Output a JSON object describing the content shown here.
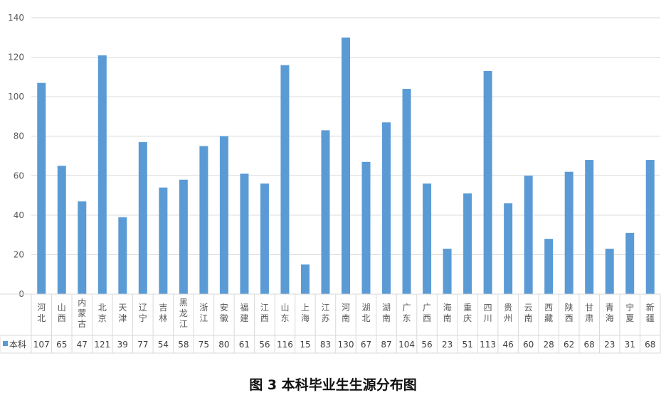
{
  "caption": "图 3 本科毕业生生源分布图",
  "chart_data": {
    "type": "bar",
    "title": "",
    "xlabel": "",
    "ylabel": "",
    "ylim": [
      0,
      140
    ],
    "yticks": [
      0,
      20,
      40,
      60,
      80,
      100,
      120,
      140
    ],
    "grid": true,
    "legend": "data-table-left",
    "bar_color": "#5B9BD5",
    "categories": [
      "河北",
      "山西",
      "内蒙古",
      "北京",
      "天津",
      "辽宁",
      "吉林",
      "黑龙江",
      "浙江",
      "安徽",
      "福建",
      "江西",
      "山东",
      "上海",
      "江苏",
      "河南",
      "湖北",
      "湖南",
      "广东",
      "广西",
      "海南",
      "重庆",
      "四川",
      "贵州",
      "云南",
      "西藏",
      "陕西",
      "甘肃",
      "青海",
      "宁夏",
      "新疆"
    ],
    "series": [
      {
        "name": "本科",
        "values": [
          107,
          65,
          47,
          121,
          39,
          77,
          54,
          58,
          75,
          80,
          61,
          56,
          116,
          15,
          83,
          130,
          67,
          87,
          104,
          56,
          23,
          51,
          113,
          46,
          60,
          28,
          62,
          68,
          23,
          31,
          68
        ]
      }
    ]
  }
}
